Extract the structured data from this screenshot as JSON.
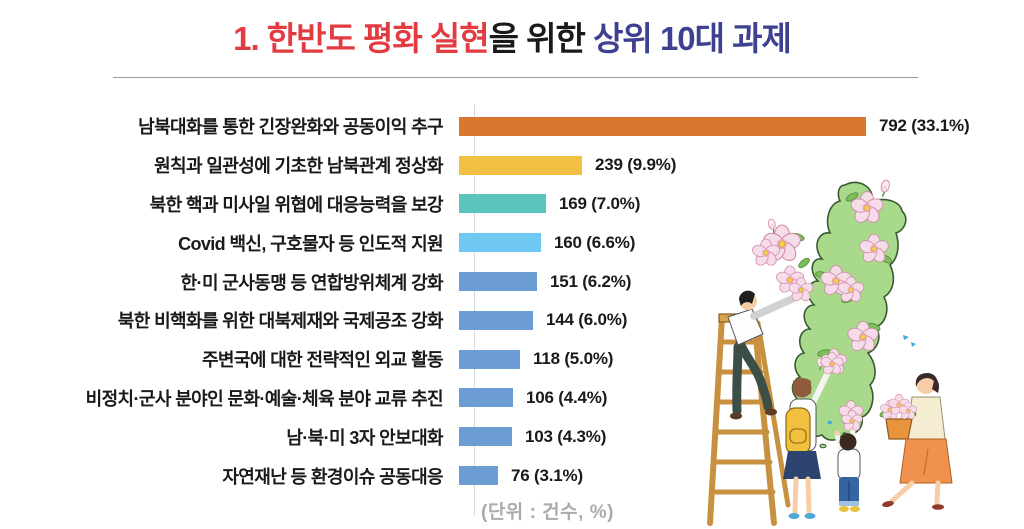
{
  "title": {
    "red_part": "1. 한반도 평화 실현",
    "black_part": "을 위한 ",
    "navy_part": "상위 10대 과제"
  },
  "footnote": "(단위 : 건수, %)",
  "chart_data": {
    "type": "bar",
    "orientation": "horizontal",
    "title": "1. 한반도 평화 실현을 위한 상위 10대 과제",
    "unit_label": "(단위 : 건수, %)",
    "categories": [
      "남북대화를 통한 긴장완화와 공동이익 추구",
      "원칙과 일관성에 기초한 남북관계 정상화",
      "북한 핵과 미사일 위협에 대응능력을 보강",
      "Covid 백신, 구호물자 등 인도적 지원",
      "한·미 군사동맹 등 연합방위체계 강화",
      "북한 비핵화를 위한 대북제재와 국제공조 강화",
      "주변국에 대한 전략적인 외교 활동",
      "비정치·군사 분야인 문화·예술·체육 분야 교류 추진",
      "남·북·미 3자 안보대화",
      "자연재난 등 환경이슈 공동대응"
    ],
    "values": [
      792,
      239,
      169,
      160,
      151,
      144,
      118,
      106,
      103,
      76
    ],
    "percents": [
      33.1,
      9.9,
      7.0,
      6.6,
      6.2,
      6.0,
      5.0,
      4.4,
      4.3,
      3.1
    ],
    "value_labels": [
      "792 (33.1%)",
      "239 (9.9%)",
      "169 (7.0%)",
      "160 (6.6%)",
      "151 (6.2%)",
      "144 (6.0%)",
      "118 (5.0%)",
      "106 (4.4%)",
      "103 (4.3%)",
      "76 (3.1%)"
    ],
    "bar_colors": [
      "#D9772F",
      "#F2C144",
      "#5BC4BC",
      "#6FC8F1",
      "#6C9CD4",
      "#6C9CD4",
      "#6C9CD4",
      "#6C9CD4",
      "#6C9CD4",
      "#6C9CD4"
    ],
    "xlim": [
      0,
      792
    ],
    "legend": "none",
    "grid": "off"
  },
  "colors": {
    "title_red": "#E23B41",
    "title_black": "#1A1A1A",
    "title_navy": "#3E4191",
    "divider": "#9A9A9A",
    "axis_line": "#D9D9D9",
    "footnote_gray": "#ABABAB",
    "value_text": "#1A1A1A"
  },
  "illustration": {
    "description": "Family placing rose-of-sharon (mugunghwa) flowers on a green map of the Korean peninsula",
    "parts": [
      "korea-map",
      "hibiscus-flowers",
      "stepladder",
      "man-on-ladder",
      "woman-with-yellow-backpack",
      "child-reaching-up",
      "woman-carrying-flower-basket",
      "blue-birds"
    ]
  }
}
